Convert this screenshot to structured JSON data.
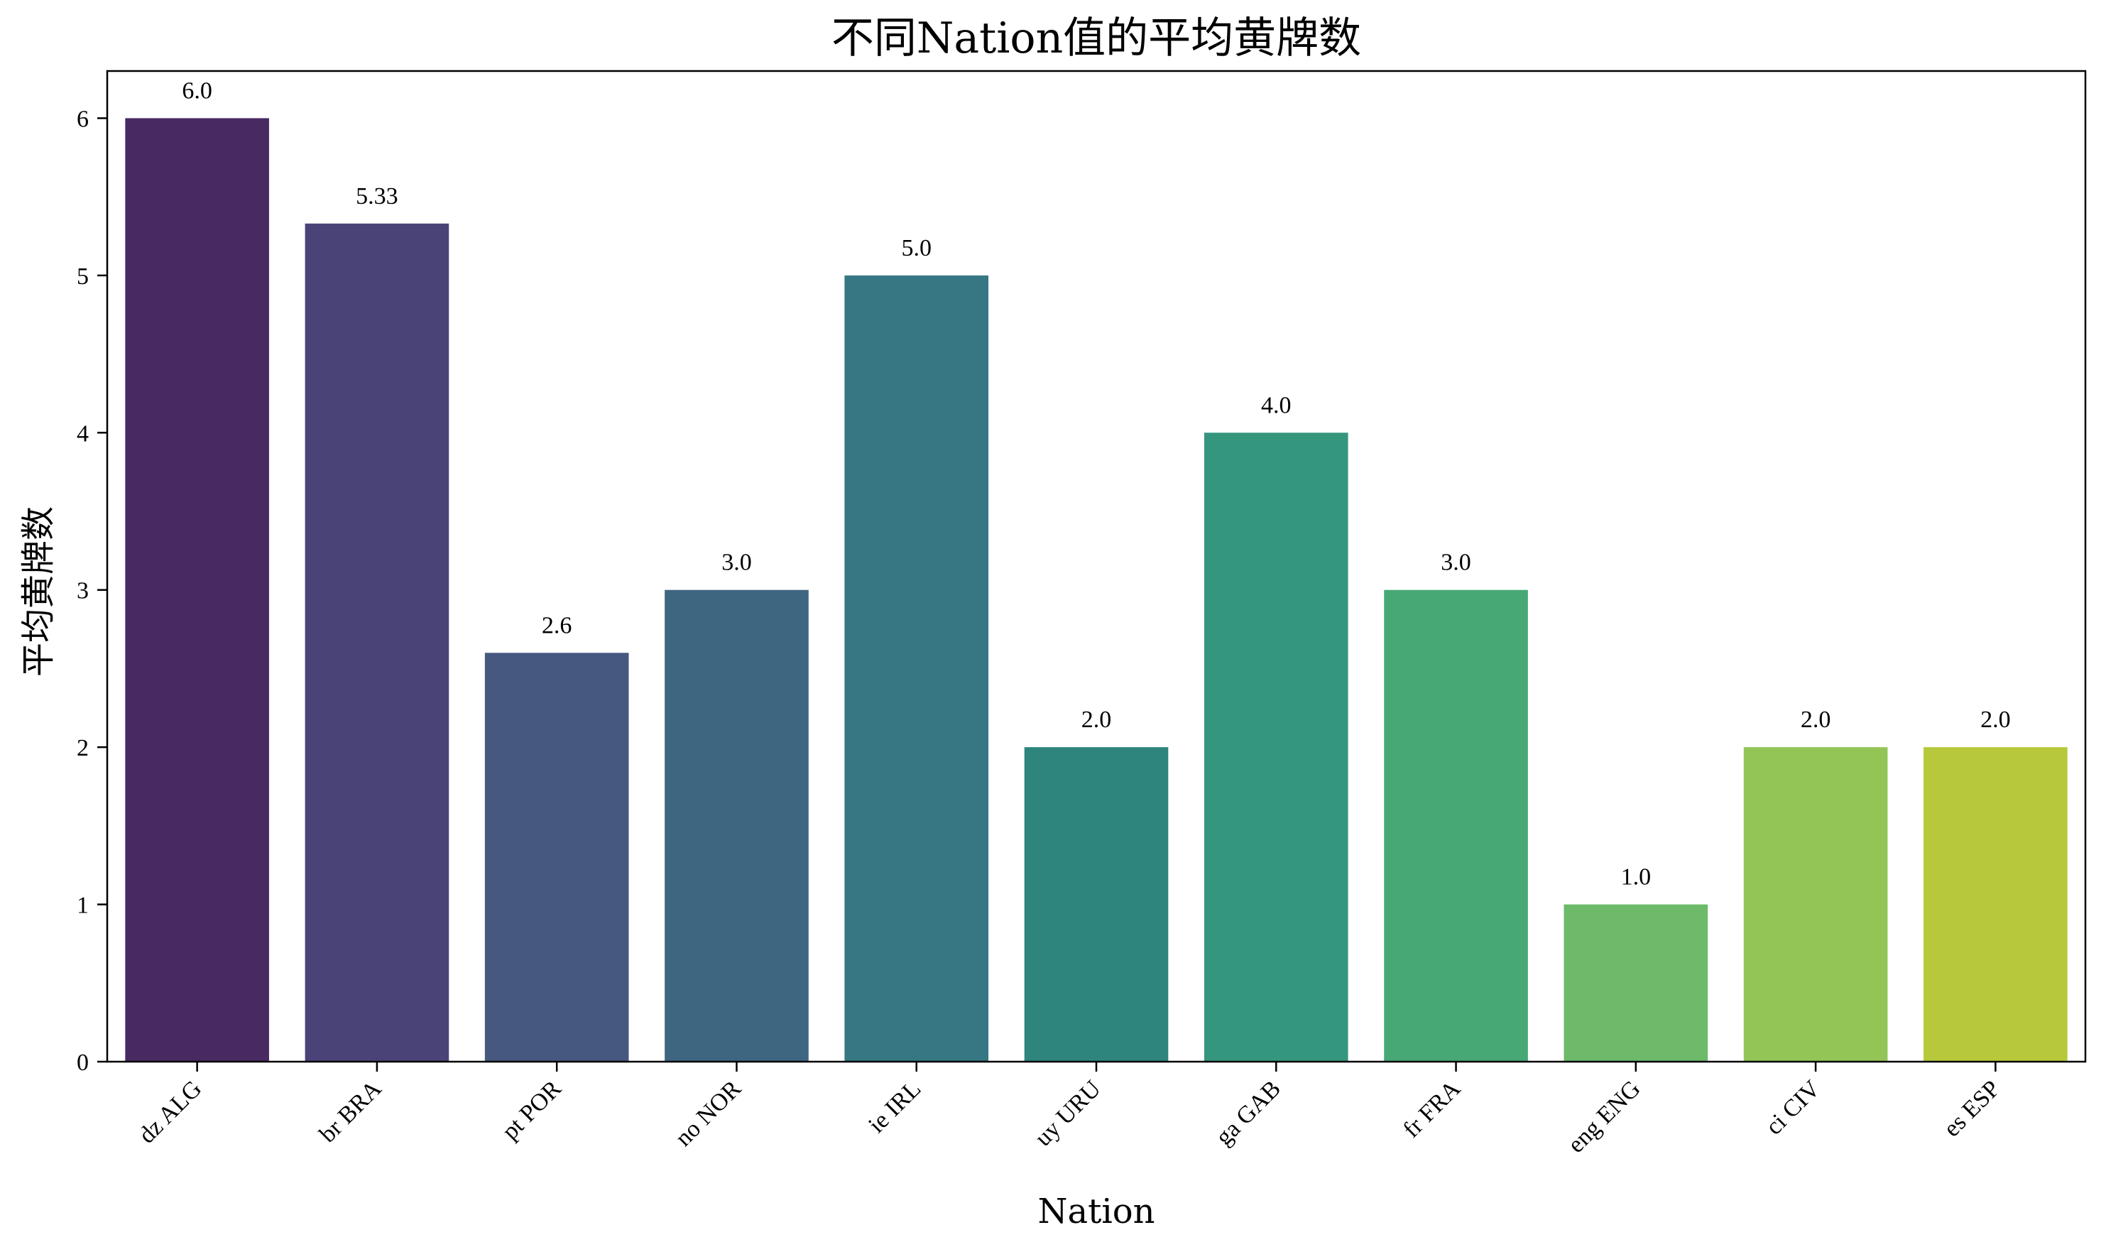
{
  "chart_data": {
    "type": "bar",
    "title": "不同Nation值的平均黄牌数",
    "xlabel": "Nation",
    "ylabel": "平均黄牌数",
    "categories": [
      "dz ALG",
      "br BRA",
      "pt POR",
      "no NOR",
      "ie IRL",
      "uy URU",
      "ga GAB",
      "fr FRA",
      "eng ENG",
      "ci CIV",
      "es ESP"
    ],
    "values": [
      6.0,
      5.33,
      2.6,
      3.0,
      5.0,
      2.0,
      4.0,
      3.0,
      1.0,
      2.0,
      2.0
    ],
    "value_labels": [
      "6.0",
      "5.33",
      "2.6",
      "3.0",
      "5.0",
      "2.0",
      "4.0",
      "3.0",
      "1.0",
      "2.0",
      "2.0"
    ],
    "colors": [
      "#482a61",
      "#4a4378",
      "#46587f",
      "#3e6680",
      "#367783",
      "#2e857d",
      "#35967e",
      "#47a876",
      "#6cba6a",
      "#92c556",
      "#b7c83b"
    ],
    "yticks": [
      0,
      1,
      2,
      3,
      4,
      5,
      6
    ],
    "ylim": [
      0,
      6.3
    ],
    "grid": false,
    "legend": "none"
  }
}
